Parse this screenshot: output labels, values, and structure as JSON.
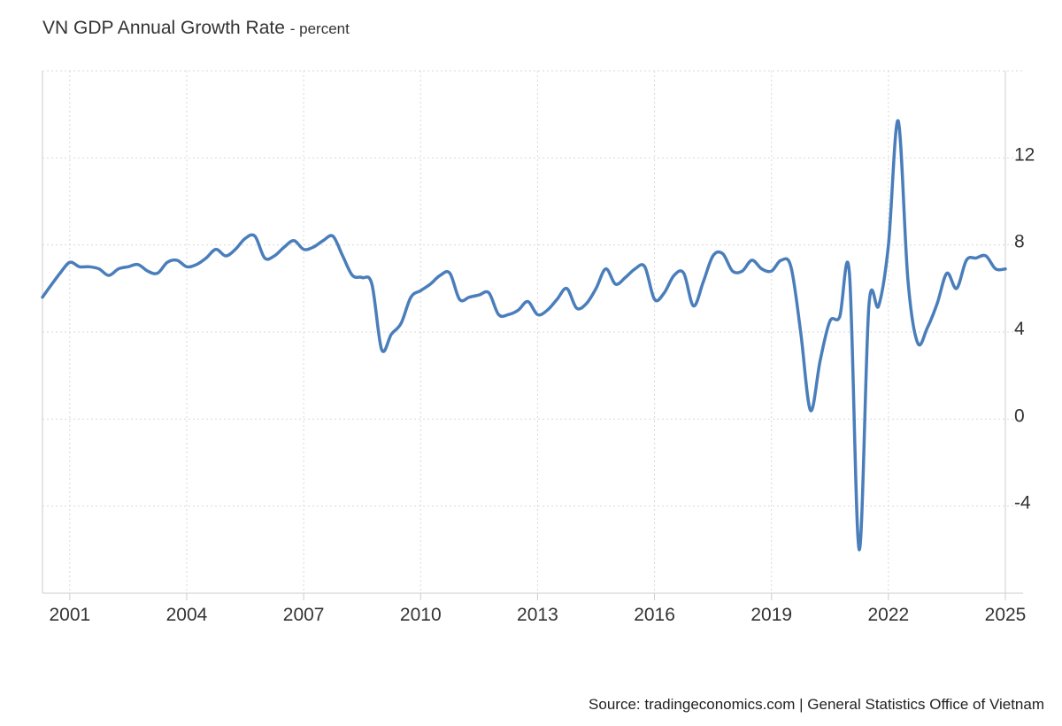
{
  "chart_data": {
    "type": "line",
    "title": "VN GDP Annual Growth Rate",
    "subtitle": "- percent",
    "source": "Source: tradingeconomics.com | General Statistics Office of Vietnam",
    "x_ticks": [
      "2001",
      "2004",
      "2007",
      "2010",
      "2013",
      "2016",
      "2019",
      "2022",
      "2025"
    ],
    "y_ticks": [
      -4,
      0,
      4,
      8,
      12
    ],
    "ylim": [
      -8,
      16
    ],
    "xlim": [
      2000.3,
      2025.0
    ],
    "grid": true,
    "line_color": "#4a7ebb",
    "series": [
      {
        "name": "",
        "x": [
          2000.3,
          2000.5,
          2000.75,
          2001.0,
          2001.25,
          2001.5,
          2001.75,
          2002.0,
          2002.25,
          2002.5,
          2002.75,
          2003.0,
          2003.25,
          2003.5,
          2003.75,
          2004.0,
          2004.25,
          2004.5,
          2004.75,
          2005.0,
          2005.25,
          2005.5,
          2005.75,
          2006.0,
          2006.25,
          2006.5,
          2006.75,
          2007.0,
          2007.25,
          2007.5,
          2007.75,
          2008.0,
          2008.25,
          2008.5,
          2008.75,
          2009.0,
          2009.25,
          2009.5,
          2009.75,
          2010.0,
          2010.25,
          2010.5,
          2010.75,
          2011.0,
          2011.25,
          2011.5,
          2011.75,
          2012.0,
          2012.25,
          2012.5,
          2012.75,
          2013.0,
          2013.25,
          2013.5,
          2013.75,
          2014.0,
          2014.25,
          2014.5,
          2014.75,
          2015.0,
          2015.25,
          2015.5,
          2015.75,
          2016.0,
          2016.25,
          2016.5,
          2016.75,
          2017.0,
          2017.25,
          2017.5,
          2017.75,
          2018.0,
          2018.25,
          2018.5,
          2018.75,
          2019.0,
          2019.25,
          2019.5,
          2019.75,
          2020.0,
          2020.25,
          2020.5,
          2020.75,
          2021.0,
          2021.25,
          2021.5,
          2021.75,
          2022.0,
          2022.25,
          2022.5,
          2022.75,
          2023.0,
          2023.25,
          2023.5,
          2023.75,
          2024.0,
          2024.25,
          2024.5,
          2024.75,
          2025.0
        ],
        "values": [
          5.6,
          6.1,
          6.7,
          7.2,
          7.0,
          7.0,
          6.9,
          6.6,
          6.9,
          7.0,
          7.1,
          6.8,
          6.7,
          7.2,
          7.3,
          7.0,
          7.1,
          7.4,
          7.8,
          7.5,
          7.8,
          8.3,
          8.4,
          7.4,
          7.5,
          7.9,
          8.2,
          7.8,
          7.9,
          8.2,
          8.4,
          7.5,
          6.6,
          6.5,
          6.2,
          3.2,
          3.9,
          4.4,
          5.6,
          5.9,
          6.2,
          6.6,
          6.7,
          5.5,
          5.6,
          5.7,
          5.8,
          4.8,
          4.8,
          5.0,
          5.4,
          4.8,
          5.0,
          5.5,
          6.0,
          5.1,
          5.3,
          6.0,
          6.9,
          6.2,
          6.5,
          6.9,
          7.0,
          5.5,
          5.8,
          6.6,
          6.7,
          5.2,
          6.3,
          7.5,
          7.6,
          6.8,
          6.8,
          7.3,
          6.9,
          6.8,
          7.3,
          7.0,
          4.0,
          0.4,
          2.7,
          4.5,
          4.7,
          6.7,
          -6.0,
          5.2,
          5.2,
          8.0,
          13.7,
          6.4,
          3.5,
          4.2,
          5.3,
          6.7,
          6.0,
          7.3,
          7.4,
          7.5,
          6.9,
          6.9
        ]
      }
    ]
  }
}
